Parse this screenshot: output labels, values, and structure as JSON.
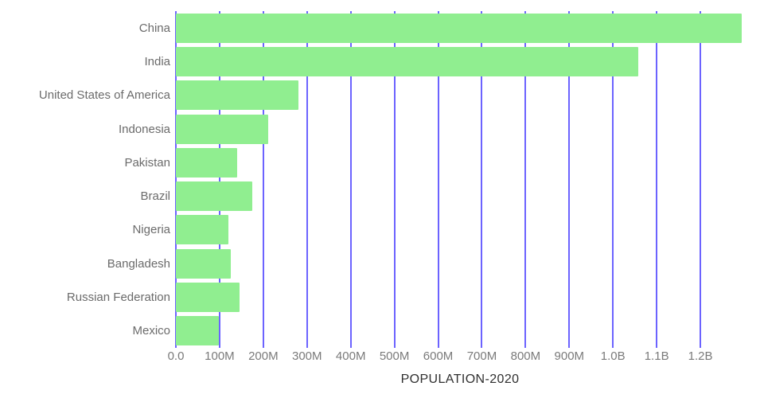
{
  "chart_data": {
    "type": "bar",
    "orientation": "horizontal",
    "title": "POPULATION-2020",
    "categories": [
      "China",
      "India",
      "United States of America",
      "Indonesia",
      "Pakistan",
      "Brazil",
      "Nigeria",
      "Bangladesh",
      "Russian Federation",
      "Mexico"
    ],
    "values_millions": [
      1294,
      1057,
      280,
      211,
      141,
      174,
      121,
      126,
      146,
      98
    ],
    "x_ticks": [
      "0.0",
      "100M",
      "200M",
      "300M",
      "400M",
      "500M",
      "600M",
      "700M",
      "800M",
      "900M",
      "1.0B",
      "1.1B",
      "1.2B"
    ],
    "x_tick_values_millions": [
      0,
      100,
      200,
      300,
      400,
      500,
      600,
      700,
      800,
      900,
      1000,
      1100,
      1200
    ],
    "xlim_millions": [
      0,
      1300
    ],
    "grid": "vertical-only",
    "legend": "none",
    "xlabel": "POPULATION-2020",
    "ylabel": "",
    "colors": {
      "bar": "#90EE90",
      "gridline": "#6C63FF",
      "category_label": "#6b6b6b",
      "tick_label": "#7a7a7a",
      "title": "#303030",
      "background": "#FFFFFF"
    }
  }
}
